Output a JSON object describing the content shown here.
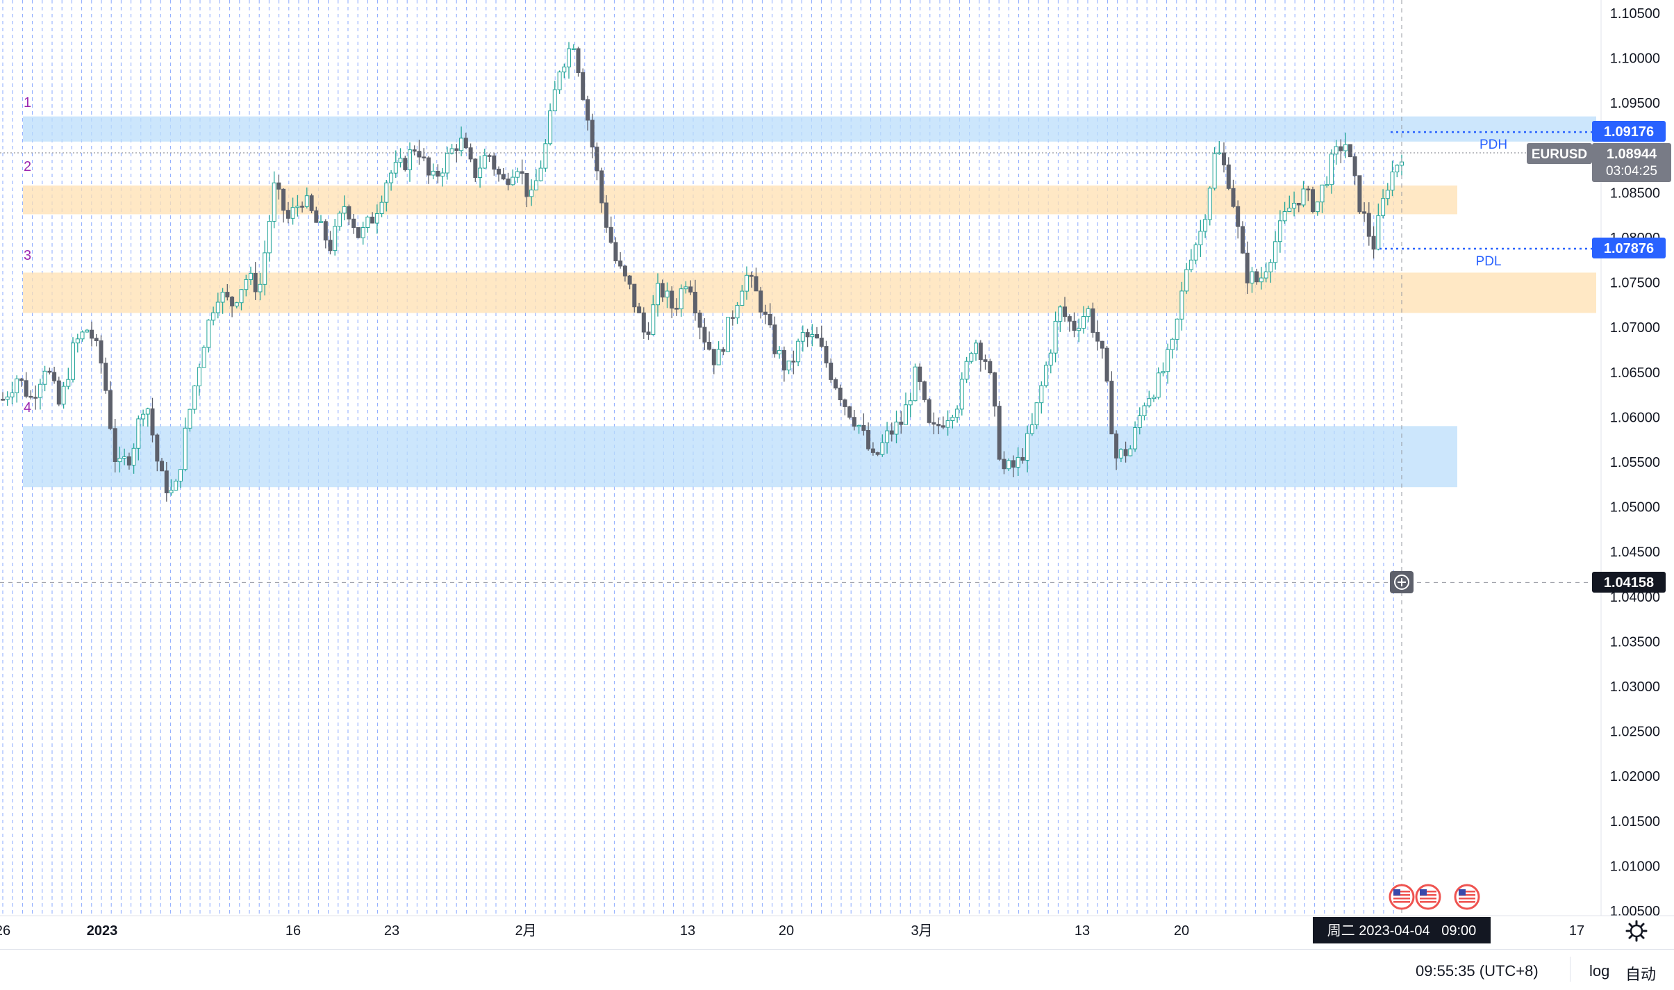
{
  "chart_data": {
    "type": "candlestick",
    "symbol": "EURUSD",
    "price_axis": {
      "ticks": [
        "1.10500",
        "1.10000",
        "1.09500",
        "1.09000",
        "1.08500",
        "1.08000",
        "1.07500",
        "1.07000",
        "1.06500",
        "1.06000",
        "1.05500",
        "1.05000",
        "1.04500",
        "1.04000",
        "1.03500",
        "1.03000",
        "1.02500",
        "1.02000",
        "1.01500",
        "1.01000",
        "1.00500"
      ],
      "range": [
        1.0045,
        1.1062
      ]
    },
    "time_axis": {
      "ticks": [
        "26",
        "2023",
        "16",
        "23",
        "2月",
        "13",
        "20",
        "3月",
        "13",
        "20",
        "17"
      ],
      "cursor_label": "周二 2023-04-04   09:00"
    },
    "zones": [
      {
        "label": "1",
        "low": 1.0907,
        "high": 1.0935,
        "color": "#bbdefb"
      },
      {
        "label": "2",
        "low": 1.0826,
        "high": 1.0858,
        "color": "#ffe0b2"
      },
      {
        "label": "3",
        "low": 1.0716,
        "high": 1.0761,
        "color": "#ffe0b2"
      },
      {
        "label": "4",
        "low": 1.0522,
        "high": 1.059,
        "color": "#bbdefb"
      }
    ],
    "levels": {
      "pdh": {
        "label": "PDH",
        "value": "1.09176"
      },
      "pdl": {
        "label": "PDL",
        "value": "1.07876"
      },
      "last": {
        "value": "1.08944",
        "countdown": "03:04:25"
      },
      "crosshair": {
        "value": "1.04158"
      }
    },
    "close_path": [
      1.062,
      1.0645,
      1.062,
      1.066,
      1.061,
      1.068,
      1.07,
      1.0655,
      1.054,
      1.056,
      1.0625,
      1.0535,
      1.051,
      1.06,
      1.068,
      1.074,
      1.0725,
      1.0755,
      1.0745,
      1.0855,
      1.082,
      1.0845,
      1.0815,
      1.079,
      1.084,
      1.08,
      1.0825,
      1.087,
      1.088,
      1.0905,
      1.086,
      1.0885,
      1.091,
      1.087,
      1.0895,
      1.086,
      1.0885,
      1.084,
      1.09,
      1.099,
      1.102,
      1.093,
      1.0835,
      1.077,
      1.074,
      1.069,
      1.0745,
      1.072,
      1.076,
      1.0695,
      1.066,
      1.071,
      1.076,
      1.073,
      1.068,
      1.065,
      1.069,
      1.0685,
      1.065,
      1.0615,
      1.059,
      1.055,
      1.058,
      1.0595,
      1.065,
      1.058,
      1.06,
      1.062,
      1.069,
      1.066,
      1.054,
      1.0545,
      1.058,
      1.065,
      1.072,
      1.07,
      1.072,
      1.067,
      1.0555,
      1.0565,
      1.062,
      1.064,
      1.068,
      1.0775,
      1.081,
      1.09,
      1.086,
      1.076,
      1.075,
      1.079,
      1.083,
      1.085,
      1.0835,
      1.088,
      1.091,
      1.084,
      1.079,
      1.086,
      1.0895
    ]
  },
  "footer": {
    "clock": "09:55:35 (UTC+8)",
    "log_label": "log",
    "auto_label": "自动"
  },
  "colors": {
    "up": "#26a69a",
    "down": "#5d606b",
    "grid_v": "#2962ff",
    "accent": "#2962ff",
    "zone_label": "#9c27b0"
  },
  "icons": [
    "plus-circle-icon",
    "gear-icon",
    "us-flag-icon"
  ]
}
